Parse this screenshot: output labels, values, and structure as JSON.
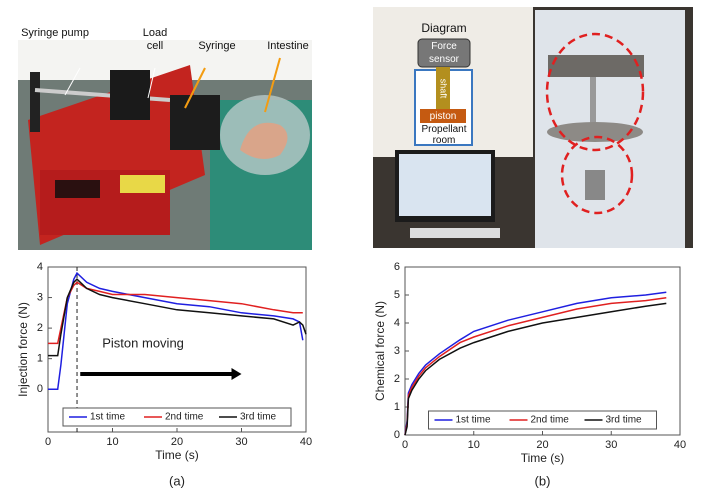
{
  "photo_a": {
    "labels": [
      "Syringe pump",
      "Load cell",
      "Syringe",
      "Intestine"
    ]
  },
  "photo_b": {
    "diagram_title": "Diagram",
    "labels": [
      "Force sensor",
      "shaft",
      "piston",
      "Propellant room"
    ]
  },
  "chart_data": [
    {
      "type": "line",
      "panel_label": "(a)",
      "xlabel": "Time (s)",
      "ylabel": "Injection force (N)",
      "x": [
        0,
        1.5,
        2,
        3,
        4,
        4.5,
        6,
        8,
        10,
        15,
        20,
        25,
        30,
        35,
        38,
        39,
        39.5,
        40
      ],
      "series": [
        {
          "name": "1st time",
          "color": "#1f1fe0",
          "values": [
            0,
            0,
            0.8,
            2.8,
            3.6,
            3.8,
            3.5,
            3.3,
            3.2,
            3.0,
            2.8,
            2.7,
            2.5,
            2.4,
            2.3,
            2.2,
            1.6,
            null
          ]
        },
        {
          "name": "2nd time",
          "color": "#e02020",
          "values": [
            1.5,
            1.5,
            2.0,
            3.0,
            3.4,
            3.5,
            3.3,
            3.2,
            3.1,
            3.1,
            3.0,
            2.9,
            2.8,
            2.6,
            2.5,
            2.5,
            2.5,
            null
          ]
        },
        {
          "name": "3rd time",
          "color": "#111111",
          "values": [
            1.1,
            1.1,
            1.8,
            3.0,
            3.5,
            3.6,
            3.3,
            3.1,
            3.0,
            2.8,
            2.6,
            2.5,
            2.4,
            2.3,
            2.1,
            2.2,
            2.1,
            1.8
          ]
        }
      ],
      "xlim": [
        0,
        40
      ],
      "ylim": [
        -1.4,
        4
      ],
      "xticks": [
        0,
        10,
        20,
        30,
        40
      ],
      "yticks": [
        0,
        1,
        2,
        3,
        4
      ],
      "vline_x": 4.5,
      "annotation": "Piston moving",
      "arrow_x": [
        5,
        30
      ],
      "arrow_y": 0.5,
      "legend": "lower center"
    },
    {
      "type": "line",
      "panel_label": "(b)",
      "xlabel": "Time (s)",
      "ylabel": "Chemical force (N)",
      "x": [
        0,
        0.3,
        0.5,
        1,
        2,
        3,
        5,
        8,
        10,
        15,
        20,
        25,
        30,
        35,
        38
      ],
      "series": [
        {
          "name": "1st time",
          "color": "#1f1fe0",
          "values": [
            0,
            0.5,
            1.5,
            1.8,
            2.2,
            2.5,
            2.9,
            3.4,
            3.7,
            4.1,
            4.4,
            4.7,
            4.9,
            5.0,
            5.1
          ]
        },
        {
          "name": "2nd time",
          "color": "#e02020",
          "values": [
            0,
            0.4,
            1.4,
            1.7,
            2.1,
            2.4,
            2.8,
            3.3,
            3.5,
            3.9,
            4.2,
            4.5,
            4.7,
            4.8,
            4.9
          ]
        },
        {
          "name": "3rd time",
          "color": "#111111",
          "values": [
            0,
            0.3,
            1.3,
            1.6,
            2.0,
            2.3,
            2.7,
            3.1,
            3.3,
            3.7,
            4.0,
            4.2,
            4.4,
            4.6,
            4.7
          ]
        }
      ],
      "xlim": [
        0,
        40
      ],
      "ylim": [
        0,
        6
      ],
      "xticks": [
        0,
        10,
        20,
        30,
        40
      ],
      "yticks": [
        0,
        1,
        2,
        3,
        4,
        5,
        6
      ],
      "legend": "lower center"
    }
  ]
}
